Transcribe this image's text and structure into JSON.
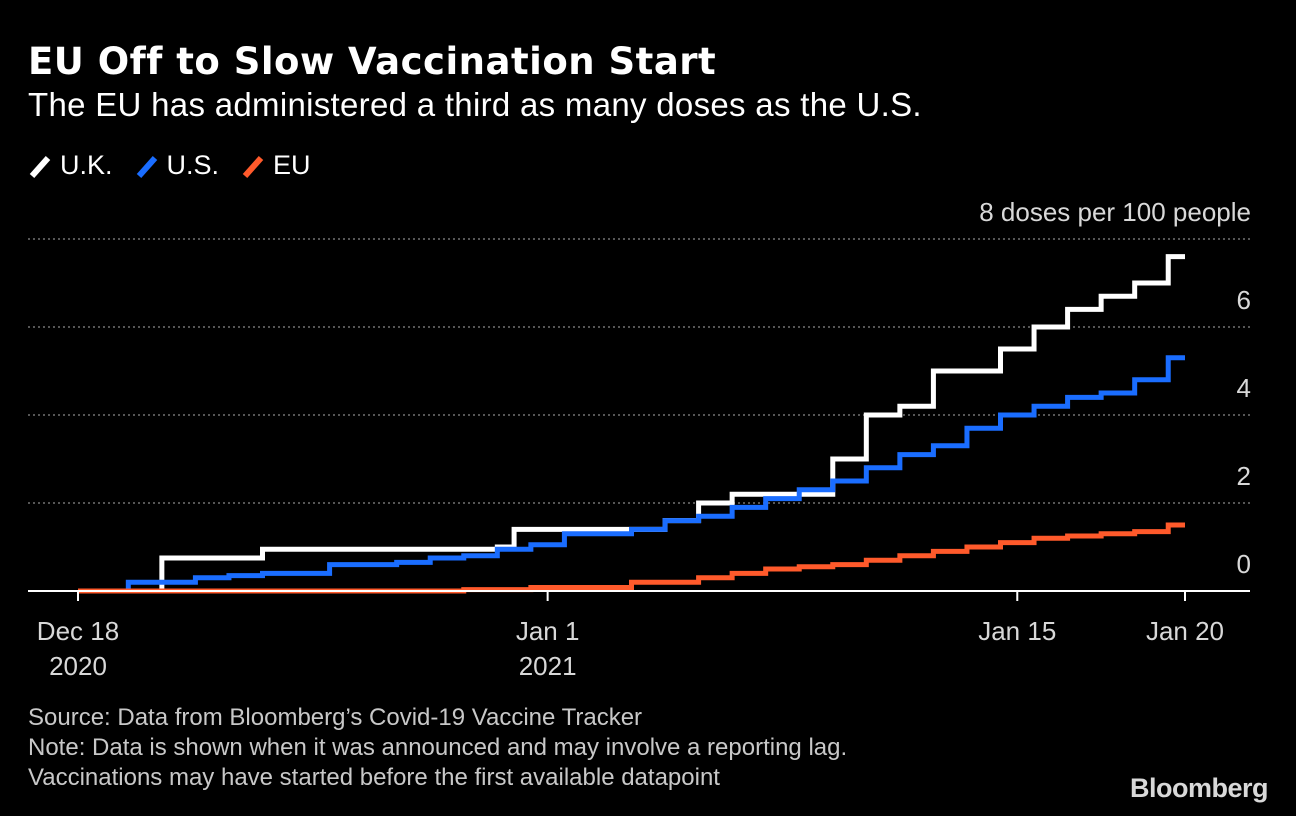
{
  "title": "EU Off to Slow Vaccination Start",
  "subtitle": "The EU has administered a third as many doses as the U.S.",
  "legend": [
    {
      "label": "U.K.",
      "color": "#ffffff"
    },
    {
      "label": "U.S.",
      "color": "#1a6dff"
    },
    {
      "label": "EU",
      "color": "#ff5a2b"
    }
  ],
  "chart_data": {
    "type": "line",
    "step": true,
    "title": "EU Off to Slow Vaccination Start",
    "ylabel": "8 doses per 100 people",
    "ylim": [
      0,
      8
    ],
    "yticks": [
      0,
      2,
      4,
      6,
      8
    ],
    "ytick_labels": [
      "0",
      "2",
      "4",
      "6",
      "8 doses per 100 people"
    ],
    "xlim": [
      0,
      33
    ],
    "xticks": [
      {
        "x": 0,
        "label": "Dec 18",
        "sublabel": "2020"
      },
      {
        "x": 14,
        "label": "Jan 1",
        "sublabel": "2021"
      },
      {
        "x": 28,
        "label": "Jan 15",
        "sublabel": ""
      },
      {
        "x": 33,
        "label": "Jan 20",
        "sublabel": ""
      }
    ],
    "series": [
      {
        "name": "U.K.",
        "color": "#ffffff",
        "points": [
          [
            0,
            0.0
          ],
          [
            2.5,
            0.75
          ],
          [
            5.5,
            0.95
          ],
          [
            12.5,
            0.95
          ],
          [
            12.5,
            1.0
          ],
          [
            13.0,
            1.4
          ],
          [
            16.5,
            1.4
          ],
          [
            17.5,
            1.6
          ],
          [
            18.5,
            2.0
          ],
          [
            19.5,
            2.2
          ],
          [
            21.5,
            2.2
          ],
          [
            22.5,
            3.0
          ],
          [
            23.5,
            4.0
          ],
          [
            24.5,
            4.2
          ],
          [
            25.5,
            5.0
          ],
          [
            27.5,
            5.5
          ],
          [
            28.5,
            6.0
          ],
          [
            29.5,
            6.4
          ],
          [
            30.5,
            6.7
          ],
          [
            31.5,
            7.0
          ],
          [
            32.5,
            7.6
          ],
          [
            33,
            7.6
          ]
        ]
      },
      {
        "name": "U.S.",
        "color": "#1a6dff",
        "points": [
          [
            0,
            0.0
          ],
          [
            1.5,
            0.2
          ],
          [
            3.5,
            0.3
          ],
          [
            4.5,
            0.35
          ],
          [
            5.5,
            0.4
          ],
          [
            7.5,
            0.6
          ],
          [
            9.5,
            0.65
          ],
          [
            10.5,
            0.75
          ],
          [
            11.5,
            0.8
          ],
          [
            12.5,
            0.95
          ],
          [
            13.5,
            1.05
          ],
          [
            14.5,
            1.3
          ],
          [
            16.5,
            1.4
          ],
          [
            17.5,
            1.6
          ],
          [
            18.5,
            1.7
          ],
          [
            19.5,
            1.9
          ],
          [
            20.5,
            2.1
          ],
          [
            21.5,
            2.3
          ],
          [
            22.5,
            2.5
          ],
          [
            23.5,
            2.8
          ],
          [
            24.5,
            3.1
          ],
          [
            25.5,
            3.3
          ],
          [
            26.5,
            3.7
          ],
          [
            27.5,
            4.0
          ],
          [
            28.5,
            4.2
          ],
          [
            29.5,
            4.4
          ],
          [
            30.5,
            4.5
          ],
          [
            31.5,
            4.8
          ],
          [
            32.5,
            5.3
          ],
          [
            33,
            5.3
          ]
        ]
      },
      {
        "name": "EU",
        "color": "#ff5a2b",
        "points": [
          [
            0,
            0.0
          ],
          [
            11.5,
            0.03
          ],
          [
            13.5,
            0.08
          ],
          [
            16.5,
            0.2
          ],
          [
            18.5,
            0.3
          ],
          [
            19.5,
            0.4
          ],
          [
            20.5,
            0.5
          ],
          [
            21.5,
            0.55
          ],
          [
            22.5,
            0.6
          ],
          [
            23.5,
            0.7
          ],
          [
            24.5,
            0.8
          ],
          [
            25.5,
            0.9
          ],
          [
            26.5,
            1.0
          ],
          [
            27.5,
            1.1
          ],
          [
            28.5,
            1.2
          ],
          [
            29.5,
            1.25
          ],
          [
            30.5,
            1.3
          ],
          [
            31.5,
            1.35
          ],
          [
            32.5,
            1.5
          ],
          [
            33,
            1.5
          ]
        ]
      }
    ]
  },
  "footer": {
    "source": "Source: Data from Bloomberg’s Covid-19 Vaccine Tracker",
    "note": "Note: Data is shown when it was announced and may involve a reporting lag.",
    "note2": "Vaccinations may have started before the first available datapoint"
  },
  "brand": "Bloomberg"
}
